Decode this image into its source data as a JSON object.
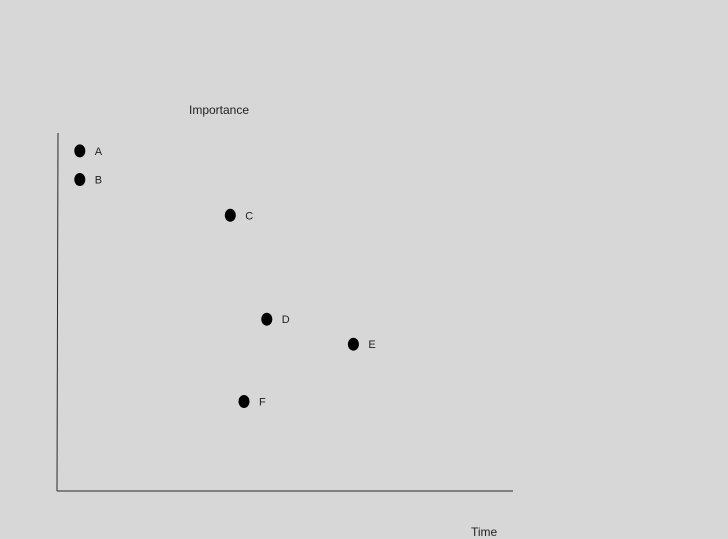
{
  "chart_data": {
    "type": "scatter",
    "xlabel": "Time",
    "ylabel": "Importance",
    "grid": false,
    "colors": {
      "background": "#d7d7d7",
      "axis": "#2a2a2a",
      "point": "#000000",
      "text": "#222222"
    },
    "points": [
      {
        "label": "A",
        "x": 0.05,
        "y": 0.95
      },
      {
        "label": "B",
        "x": 0.05,
        "y": 0.87
      },
      {
        "label": "C",
        "x": 0.38,
        "y": 0.77
      },
      {
        "label": "D",
        "x": 0.46,
        "y": 0.48
      },
      {
        "label": "E",
        "x": 0.65,
        "y": 0.41
      },
      {
        "label": "F",
        "x": 0.41,
        "y": 0.25
      }
    ]
  }
}
